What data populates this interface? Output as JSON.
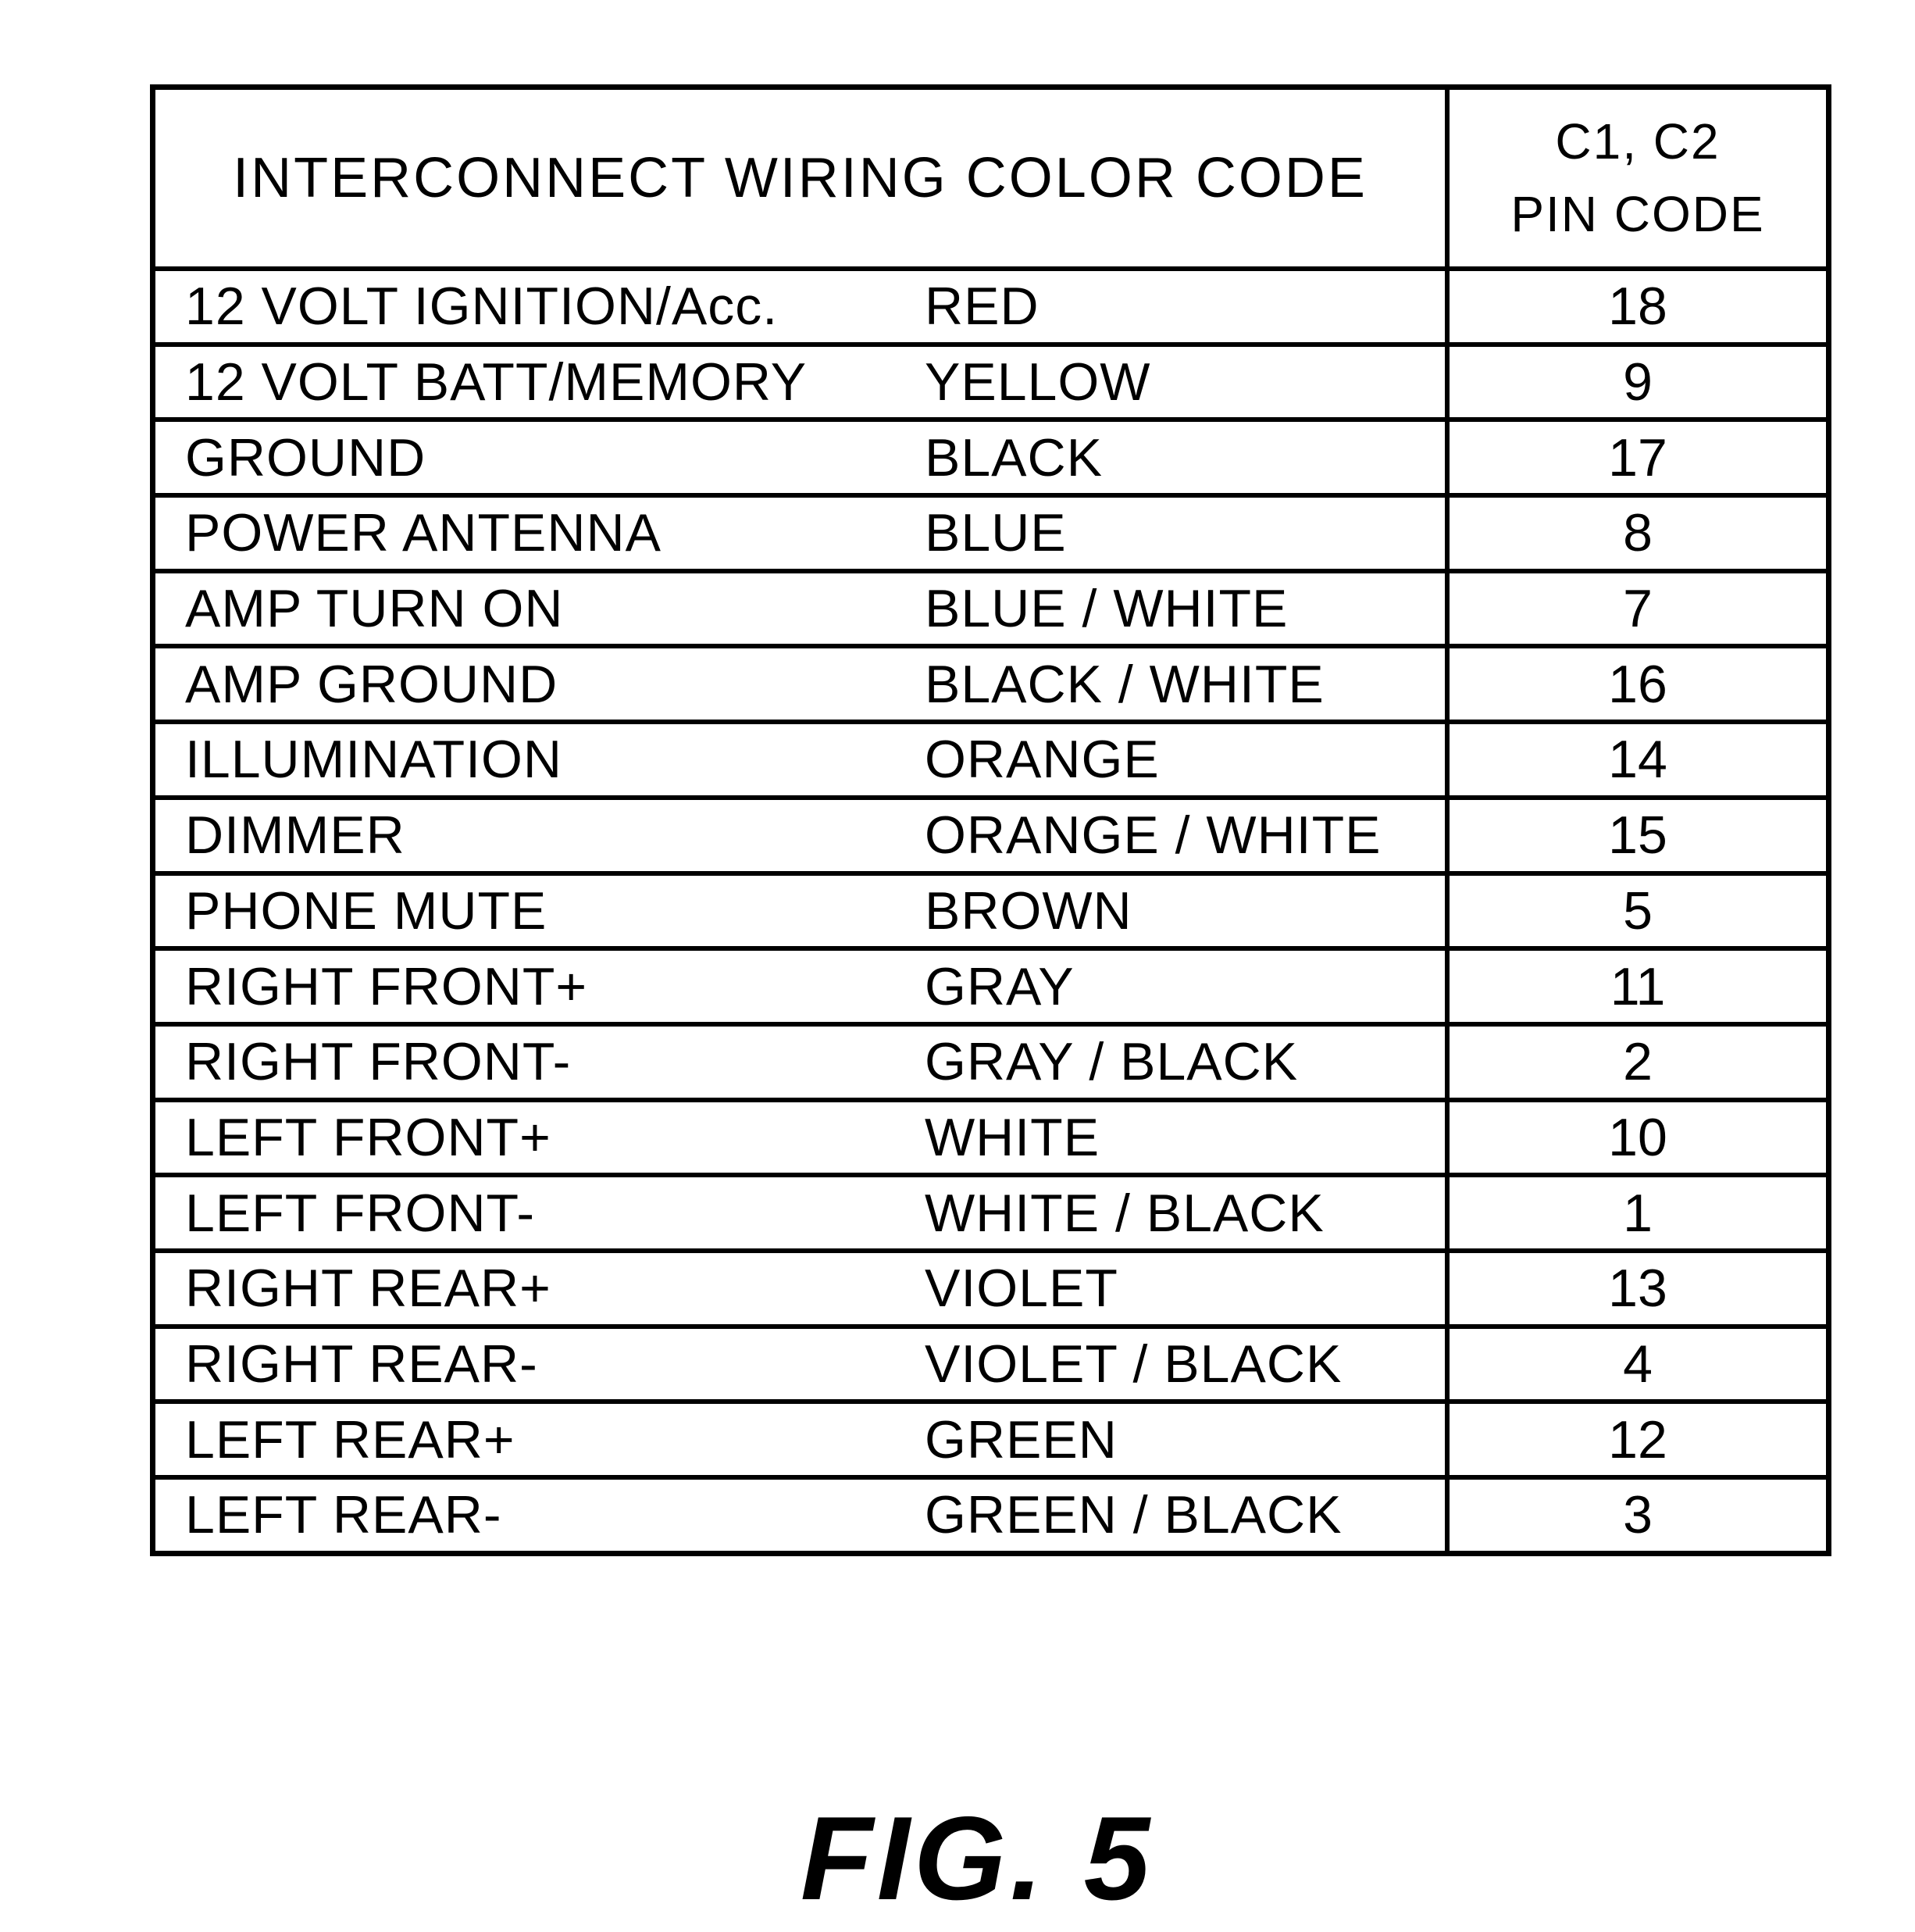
{
  "table": {
    "header": {
      "col1": "INTERCONNECT WIRING COLOR CODE",
      "col2_line1": "C1, C2",
      "col2_line2": "PIN CODE"
    },
    "rows": [
      {
        "signal": "12 VOLT IGNITION/Acc.",
        "color": "RED",
        "pin": "18"
      },
      {
        "signal": "12 VOLT BATT/MEMORY",
        "color": "YELLOW",
        "pin": "9"
      },
      {
        "signal": "GROUND",
        "color": "BLACK",
        "pin": "17"
      },
      {
        "signal": "POWER ANTENNA",
        "color": "BLUE",
        "pin": "8"
      },
      {
        "signal": "AMP TURN ON",
        "color": "BLUE / WHITE",
        "pin": "7"
      },
      {
        "signal": "AMP GROUND",
        "color": "BLACK / WHITE",
        "pin": "16"
      },
      {
        "signal": "ILLUMINATION",
        "color": "ORANGE",
        "pin": "14"
      },
      {
        "signal": "DIMMER",
        "color": "ORANGE / WHITE",
        "pin": "15"
      },
      {
        "signal": "PHONE MUTE",
        "color": "BROWN",
        "pin": "5"
      },
      {
        "signal": "RIGHT FRONT+",
        "color": "GRAY",
        "pin": "11"
      },
      {
        "signal": "RIGHT FRONT-",
        "color": "GRAY / BLACK",
        "pin": "2"
      },
      {
        "signal": "LEFT FRONT+",
        "color": "WHITE",
        "pin": "10"
      },
      {
        "signal": "LEFT FRONT-",
        "color": "WHITE / BLACK",
        "pin": "1"
      },
      {
        "signal": "RIGHT REAR+",
        "color": "VIOLET",
        "pin": "13"
      },
      {
        "signal": "RIGHT REAR-",
        "color": "VIOLET / BLACK",
        "pin": "4"
      },
      {
        "signal": "LEFT REAR+",
        "color": "GREEN",
        "pin": "12"
      },
      {
        "signal": "LEFT REAR-",
        "color": "GREEN / BLACK",
        "pin": "3"
      }
    ]
  },
  "caption": "FIG. 5",
  "colors": {
    "ink": "#000000",
    "paper": "#ffffff"
  }
}
